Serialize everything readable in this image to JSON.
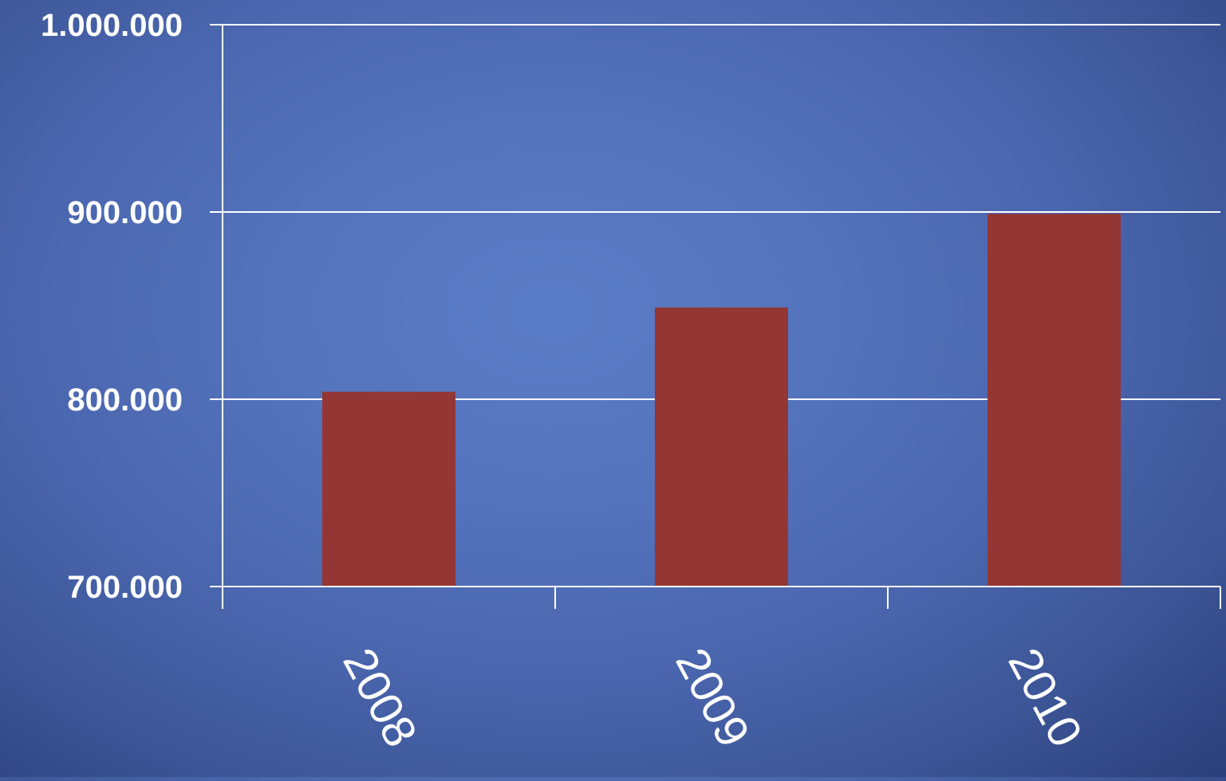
{
  "chart_data": {
    "type": "bar",
    "categories": [
      "2008",
      "2009",
      "2010"
    ],
    "values": [
      804000,
      849000,
      899000
    ],
    "y_tick_values": [
      700000,
      800000,
      900000,
      1000000
    ],
    "y_tick_labels": [
      "700.000",
      "800.000",
      "900.000",
      "1.000.000"
    ],
    "ylim": [
      700000,
      1000000
    ],
    "title": "",
    "xlabel": "",
    "ylabel": "",
    "grid": true,
    "legend": "none",
    "colors": {
      "bar": "#943634",
      "gridline": "#ffffff",
      "axis": "#ffffff",
      "text": "#ffffff"
    }
  }
}
